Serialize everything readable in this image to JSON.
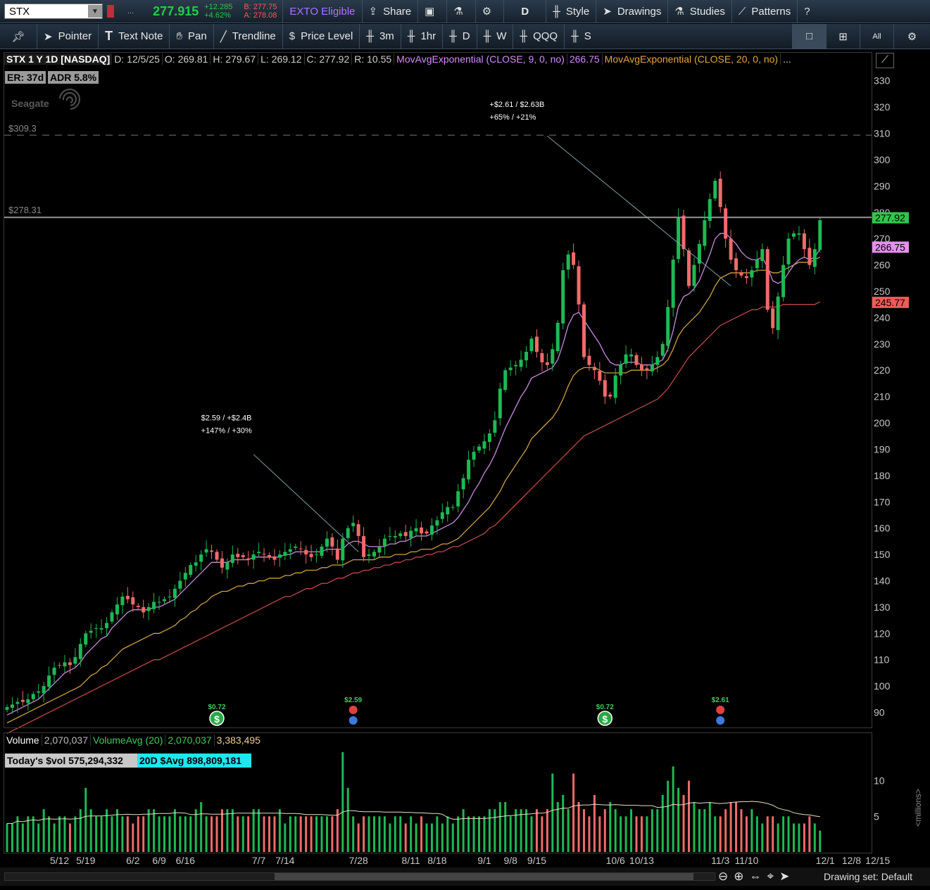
{
  "topbar": {
    "symbol": "STX",
    "last": "277.915",
    "change": "+12.285",
    "change_pct": "+4.62%",
    "bid": "B: 277.75",
    "ask": "A: 278.08",
    "exto": "EXTO Eligible",
    "share": "Share",
    "period_btn": "D",
    "style": "Style",
    "drawings": "Drawings",
    "studies": "Studies",
    "patterns": "Patterns",
    "ellipsis": "..."
  },
  "toolbar": {
    "pointer": "Pointer",
    "text_note": "Text Note",
    "pan": "Pan",
    "trendline": "Trendline",
    "price_level": "Price Level",
    "t3m": "3m",
    "t1hr": "1hr",
    "tD": "D",
    "tW": "W",
    "tQQQ": "QQQ",
    "tS": "S"
  },
  "study_line": {
    "title": "STX 1 Y 1D [NASDAQ]",
    "date": "D: 12/5/25",
    "open": "O: 269.81",
    "high": "H: 279.67",
    "low": "L: 269.12",
    "close": "C: 277.92",
    "range": "R: 10.55",
    "ema9_label": "MovAvgExponential (CLOSE, 9, 0, no)",
    "ema9_val": "266.75",
    "ema20_label": "MovAvgExponential (CLOSE, 20, 0, no)",
    "more": "..."
  },
  "badges": {
    "er": "ER: 37d",
    "adr": "ADR 5.8%"
  },
  "watermark": "Seagate",
  "colors": {
    "up": "#1db954",
    "down": "#f06a6a",
    "ema9": "#c98be0",
    "ema20": "#d0a040",
    "ema50": "#c04848",
    "price_tag": "#33c44d",
    "ema9_tag": "#e58fee",
    "ema50_tag": "#f05a5a"
  },
  "chart_data": {
    "type": "candlestick",
    "ylim": [
      84,
      335
    ],
    "yticks": [
      90,
      100,
      110,
      120,
      130,
      140,
      150,
      160,
      170,
      180,
      190,
      200,
      210,
      220,
      230,
      240,
      250,
      260,
      270,
      280,
      290,
      300,
      310,
      320,
      330
    ],
    "xticks": [
      {
        "label": "5/12",
        "i": 10
      },
      {
        "label": "5/19",
        "i": 15
      },
      {
        "label": "6/2",
        "i": 24
      },
      {
        "label": "6/9",
        "i": 29
      },
      {
        "label": "6/16",
        "i": 34
      },
      {
        "label": "7/7",
        "i": 48
      },
      {
        "label": "7/14",
        "i": 53
      },
      {
        "label": "7/28",
        "i": 67
      },
      {
        "label": "8/11",
        "i": 77
      },
      {
        "label": "8/18",
        "i": 82
      },
      {
        "label": "9/1",
        "i": 91
      },
      {
        "label": "9/8",
        "i": 96
      },
      {
        "label": "9/15",
        "i": 101
      },
      {
        "label": "10/6",
        "i": 116
      },
      {
        "label": "10/13",
        "i": 121
      },
      {
        "label": "11/3",
        "i": 136
      },
      {
        "label": "11/10",
        "i": 141
      },
      {
        "label": "12/1",
        "i": 156
      },
      {
        "label": "12/8",
        "i": 161
      },
      {
        "label": "12/15",
        "i": 166
      }
    ],
    "closes": [
      92,
      93,
      94,
      94,
      95,
      97,
      98,
      100,
      104,
      107,
      108,
      109,
      108,
      111,
      116,
      120,
      121,
      122,
      122,
      124,
      128,
      131,
      134,
      133,
      131,
      130,
      128,
      130,
      132,
      132,
      133,
      134,
      137,
      140,
      143,
      146,
      147,
      150,
      152,
      151,
      148,
      145,
      147,
      150,
      149,
      149,
      148,
      150,
      151,
      150,
      149,
      148,
      150,
      151,
      152,
      153,
      152,
      150,
      149,
      150,
      153,
      156,
      153,
      148,
      156,
      160,
      162,
      157,
      149,
      150,
      151,
      153,
      156,
      157,
      157,
      158,
      157,
      159,
      160,
      158,
      158,
      161,
      163,
      166,
      168,
      168,
      174,
      179,
      186,
      189,
      191,
      193,
      196,
      201,
      213,
      220,
      221,
      222,
      224,
      227,
      232,
      227,
      223,
      222,
      228,
      238,
      258,
      264,
      260,
      245,
      225,
      222,
      220,
      216,
      210,
      210,
      218,
      222,
      226,
      226,
      222,
      220,
      220,
      222,
      225,
      230,
      244,
      262,
      278,
      266,
      252,
      260,
      268,
      277,
      285,
      292,
      282,
      270,
      262,
      258,
      256,
      255,
      258,
      262,
      266,
      243,
      236,
      248,
      260,
      270,
      272,
      272,
      266,
      260,
      266,
      277
    ],
    "ema9": [
      89,
      90,
      91,
      92,
      93,
      94,
      95,
      97,
      99,
      101,
      103,
      105,
      106,
      107,
      109,
      112,
      114,
      116,
      118,
      119,
      122,
      124,
      126,
      128,
      129,
      129,
      129,
      129,
      130,
      130,
      131,
      132,
      133,
      135,
      137,
      139,
      141,
      143,
      145,
      147,
      147,
      147,
      147,
      148,
      148,
      148,
      148,
      149,
      149,
      149,
      149,
      149,
      149,
      150,
      150,
      151,
      151,
      151,
      151,
      151,
      151,
      152,
      152,
      152,
      152,
      154,
      155,
      155,
      154,
      153,
      153,
      153,
      153,
      154,
      154,
      155,
      155,
      156,
      157,
      157,
      157,
      158,
      159,
      160,
      161,
      162,
      164,
      167,
      170,
      174,
      177,
      181,
      184,
      188,
      193,
      198,
      202,
      206,
      210,
      213,
      217,
      218,
      219,
      220,
      221,
      224,
      230,
      237,
      241,
      242,
      239,
      236,
      233,
      230,
      226,
      223,
      222,
      222,
      223,
      223,
      223,
      222,
      222,
      222,
      223,
      224,
      228,
      235,
      244,
      248,
      249,
      251,
      254,
      259,
      264,
      270,
      272,
      272,
      270,
      268,
      265,
      263,
      262,
      262,
      263,
      259,
      254,
      253,
      254,
      257,
      260,
      262,
      263,
      262,
      263,
      266
    ],
    "ema20": [
      86,
      87,
      88,
      89,
      90,
      91,
      92,
      93,
      94,
      95,
      96,
      97,
      98,
      99,
      100,
      102,
      104,
      105,
      107,
      108,
      110,
      112,
      114,
      115,
      116,
      117,
      118,
      119,
      120,
      120,
      121,
      122,
      123,
      125,
      126,
      128,
      129,
      131,
      132,
      134,
      135,
      136,
      136,
      137,
      138,
      138,
      139,
      139,
      140,
      140,
      141,
      141,
      141,
      142,
      142,
      143,
      143,
      144,
      144,
      144,
      145,
      145,
      146,
      146,
      146,
      147,
      148,
      148,
      148,
      148,
      148,
      149,
      149,
      149,
      150,
      150,
      150,
      151,
      151,
      152,
      152,
      152,
      153,
      154,
      154,
      155,
      156,
      158,
      160,
      162,
      164,
      166,
      168,
      171,
      174,
      178,
      181,
      184,
      187,
      190,
      194,
      196,
      198,
      200,
      202,
      205,
      209,
      214,
      218,
      220,
      221,
      221,
      221,
      220,
      219,
      219,
      219,
      219,
      219,
      220,
      220,
      220,
      220,
      220,
      221,
      222,
      224,
      228,
      233,
      236,
      238,
      240,
      242,
      245,
      248,
      252,
      255,
      256,
      257,
      257,
      257,
      257,
      257,
      258,
      258,
      258,
      257,
      257,
      258,
      259,
      260,
      261,
      261,
      261,
      262,
      263
    ],
    "ema50": [
      82,
      83,
      84,
      85,
      86,
      87,
      88,
      89,
      90,
      91,
      92,
      93,
      94,
      95,
      96,
      97,
      98,
      99,
      100,
      101,
      102,
      103,
      104,
      105,
      106,
      107,
      108,
      109,
      110,
      110,
      111,
      112,
      113,
      114,
      115,
      116,
      117,
      118,
      119,
      120,
      121,
      122,
      123,
      124,
      125,
      126,
      127,
      128,
      129,
      130,
      131,
      132,
      133,
      134,
      134,
      135,
      136,
      137,
      137,
      138,
      139,
      139,
      140,
      141,
      141,
      142,
      143,
      143,
      144,
      144,
      145,
      145,
      146,
      146,
      147,
      147,
      148,
      148,
      149,
      149,
      150,
      150,
      151,
      151,
      152,
      153,
      153,
      154,
      155,
      156,
      157,
      158,
      160,
      161,
      163,
      165,
      167,
      169,
      171,
      173,
      175,
      177,
      179,
      181,
      183,
      185,
      187,
      189,
      191,
      193,
      195,
      196,
      197,
      198,
      199,
      200,
      201,
      202,
      203,
      204,
      205,
      206,
      207,
      208,
      209,
      211,
      213,
      216,
      219,
      222,
      225,
      227,
      229,
      231,
      233,
      235,
      237,
      238,
      239,
      240,
      241,
      242,
      243,
      243,
      244,
      244,
      244,
      244,
      245,
      245,
      245,
      245,
      245,
      245,
      245,
      246
    ],
    "volume": [
      4,
      4,
      5,
      4,
      5,
      5,
      4,
      6,
      5,
      4,
      5,
      5,
      4,
      5,
      6,
      9,
      6,
      5,
      5,
      6,
      5,
      6,
      5,
      5,
      4,
      5,
      5,
      6,
      6,
      5,
      5,
      5,
      6,
      5,
      5,
      5,
      6,
      7,
      5,
      5,
      5,
      6,
      6,
      6,
      5,
      5,
      5,
      6,
      6,
      5,
      5,
      5,
      6,
      4,
      5,
      5,
      5,
      5,
      5,
      5,
      5,
      5,
      5,
      6,
      14,
      9,
      5,
      4,
      5,
      5,
      5,
      5,
      5,
      4,
      5,
      5,
      4,
      5,
      4,
      5,
      4,
      4,
      5,
      4,
      5,
      4,
      5,
      6,
      5,
      5,
      5,
      5,
      6,
      6,
      7,
      7,
      5,
      6,
      6,
      6,
      5,
      6,
      5,
      6,
      11,
      7,
      8,
      6,
      11,
      7,
      6,
      5,
      8,
      5,
      6,
      7,
      6,
      5,
      5,
      6,
      5,
      5,
      5,
      6,
      6,
      8,
      10,
      12,
      9,
      8,
      10,
      7,
      6,
      6,
      7,
      5,
      5,
      6,
      7,
      7,
      6,
      5,
      6,
      5,
      4,
      5,
      5,
      4,
      5,
      5,
      4,
      4,
      4,
      5,
      4,
      3
    ],
    "levels": [
      {
        "label": "$309.3",
        "value": 309.3
      },
      {
        "label": "$278.31",
        "value": 278.31
      }
    ],
    "price_tags": [
      {
        "label": "277.92",
        "value": 277.92
      },
      {
        "label": "266.75",
        "value": 266.75
      },
      {
        "label": "245.77",
        "value": 245.77
      }
    ],
    "annotations": [
      {
        "line1": "$2.59 / +$2.4B",
        "line2": "+147% / +30%",
        "text_i": 37,
        "text_v": 201,
        "line_from_i": 47,
        "line_from_v": 188,
        "line_to_i": 67,
        "line_to_v": 151
      },
      {
        "line1": "+$2.61 / $2.63B",
        "line2": "+65% / +21%",
        "text_i": 92,
        "text_v": 320,
        "line_from_i": 103,
        "line_from_v": 309,
        "line_to_i": 138,
        "line_to_v": 252
      }
    ],
    "events": [
      {
        "kind": "dividend",
        "label": "$0.72",
        "i": 40
      },
      {
        "kind": "earnings",
        "label": "$2.59",
        "i": 66
      },
      {
        "kind": "dividend",
        "label": "$0.72",
        "i": 114
      },
      {
        "kind": "earnings",
        "label": "$2.61",
        "i": 136
      }
    ],
    "vol_ylim": [
      0,
      14.5
    ],
    "vol_ticks": [
      {
        "label": "10",
        "v": 10
      },
      {
        "label": "5",
        "v": 5
      }
    ]
  },
  "volume_panel": {
    "label": "Volume",
    "val": "2,070,037",
    "avg_label": "VolumeAvg (20)",
    "avg_val": "2,070,037",
    "v3": "3,383,495",
    "today_vol": "Today's $vol 575,294,332",
    "avg20": "20D $Avg 898,809,181",
    "unit": "<millions>"
  },
  "bottom": {
    "drawing_set": "Drawing set: Default"
  }
}
